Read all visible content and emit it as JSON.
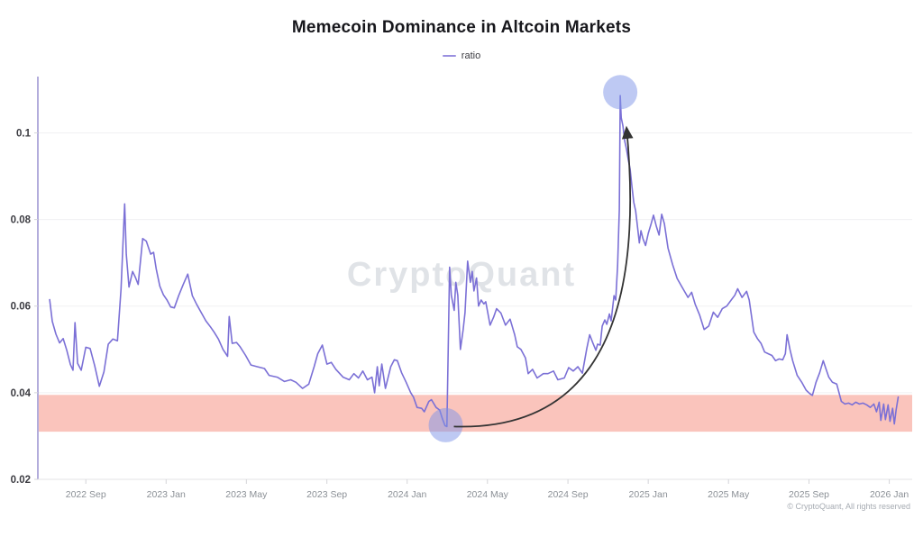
{
  "header": {
    "title": "Memecoin Dominance in Altcoin Markets",
    "legend": [
      {
        "label": "ratio",
        "color": "#9a90e0"
      }
    ],
    "watermark": "CryptoQuant",
    "copyright": "© CryptoQuant, All rights reserved"
  },
  "chart_data": {
    "type": "line",
    "title": "Memecoin Dominance in Altcoin Markets",
    "xlabel": "",
    "ylabel": "ratio",
    "grid": "horizontal",
    "legend_position": "top-center",
    "xlim": [
      2022.468,
      2026.095
    ],
    "ylim": [
      0.02,
      0.113
    ],
    "y_ticks": [
      {
        "v": 0.02,
        "label": "0.02"
      },
      {
        "v": 0.04,
        "label": "0.04"
      },
      {
        "v": 0.06,
        "label": "0.06"
      },
      {
        "v": 0.08,
        "label": "0.08"
      },
      {
        "v": 0.1,
        "label": "0.1"
      }
    ],
    "x_ticks": [
      {
        "t": 2022.667,
        "label": "2022 Sep"
      },
      {
        "t": 2023.0,
        "label": "2023 Jan"
      },
      {
        "t": 2023.333,
        "label": "2023 May"
      },
      {
        "t": 2023.667,
        "label": "2023 Sep"
      },
      {
        "t": 2024.0,
        "label": "2024 Jan"
      },
      {
        "t": 2024.333,
        "label": "2024 May"
      },
      {
        "t": 2024.667,
        "label": "2024 Sep"
      },
      {
        "t": 2025.0,
        "label": "2025 Jan"
      },
      {
        "t": 2025.333,
        "label": "2025 May"
      },
      {
        "t": 2025.667,
        "label": "2025 Sep"
      },
      {
        "t": 2026.0,
        "label": "2026 Jan"
      }
    ],
    "highlight_band": {
      "from": 0.031,
      "to": 0.0395,
      "color": "#f8b0a6",
      "opacity": 0.75
    },
    "annotations": {
      "circles": [
        {
          "name": "trough-marker",
          "t": 2024.16,
          "v": 0.0325,
          "color": "#7d93e8",
          "opacity": 0.5
        },
        {
          "name": "peak-marker",
          "t": 2024.884,
          "v": 0.1094,
          "color": "#7d93e8",
          "opacity": 0.5
        }
      ],
      "arrow": {
        "from_t": 2024.175,
        "from_v": 0.0322,
        "to_t": 2024.884,
        "to_v": 0.104,
        "color": "#333333"
      }
    },
    "series": [
      {
        "name": "ratio",
        "color": "#7b70d6",
        "points": [
          [
            2022.517,
            0.0615
          ],
          [
            2022.528,
            0.0565
          ],
          [
            2022.543,
            0.0535
          ],
          [
            2022.558,
            0.0515
          ],
          [
            2022.573,
            0.0525
          ],
          [
            2022.588,
            0.0498
          ],
          [
            2022.603,
            0.0465
          ],
          [
            2022.614,
            0.0452
          ],
          [
            2022.622,
            0.0562
          ],
          [
            2022.633,
            0.0468
          ],
          [
            2022.648,
            0.0452
          ],
          [
            2022.667,
            0.0505
          ],
          [
            2022.685,
            0.0502
          ],
          [
            2022.704,
            0.0462
          ],
          [
            2022.723,
            0.0415
          ],
          [
            2022.742,
            0.0448
          ],
          [
            2022.76,
            0.0512
          ],
          [
            2022.779,
            0.0524
          ],
          [
            2022.798,
            0.052
          ],
          [
            2022.813,
            0.064
          ],
          [
            2022.828,
            0.0836
          ],
          [
            2022.835,
            0.072
          ],
          [
            2022.846,
            0.0644
          ],
          [
            2022.861,
            0.068
          ],
          [
            2022.873,
            0.0666
          ],
          [
            2022.884,
            0.065
          ],
          [
            2022.903,
            0.0756
          ],
          [
            2022.918,
            0.075
          ],
          [
            2022.936,
            0.072
          ],
          [
            2022.948,
            0.0724
          ],
          [
            2022.959,
            0.0686
          ],
          [
            2022.974,
            0.0646
          ],
          [
            2022.989,
            0.0626
          ],
          [
            2023.004,
            0.0614
          ],
          [
            2023.019,
            0.0598
          ],
          [
            2023.034,
            0.0596
          ],
          [
            2023.052,
            0.0624
          ],
          [
            2023.071,
            0.065
          ],
          [
            2023.09,
            0.0674
          ],
          [
            2023.109,
            0.0624
          ],
          [
            2023.127,
            0.0604
          ],
          [
            2023.146,
            0.0585
          ],
          [
            2023.165,
            0.0566
          ],
          [
            2023.184,
            0.0552
          ],
          [
            2023.199,
            0.054
          ],
          [
            2023.217,
            0.0524
          ],
          [
            2023.236,
            0.05
          ],
          [
            2023.255,
            0.0484
          ],
          [
            2023.262,
            0.0576
          ],
          [
            2023.274,
            0.0514
          ],
          [
            2023.292,
            0.0516
          ],
          [
            2023.307,
            0.0506
          ],
          [
            2023.33,
            0.0486
          ],
          [
            2023.352,
            0.0464
          ],
          [
            2023.378,
            0.046
          ],
          [
            2023.408,
            0.0456
          ],
          [
            2023.427,
            0.044
          ],
          [
            2023.461,
            0.0436
          ],
          [
            2023.491,
            0.0426
          ],
          [
            2023.517,
            0.043
          ],
          [
            2023.539,
            0.0424
          ],
          [
            2023.566,
            0.041
          ],
          [
            2023.592,
            0.042
          ],
          [
            2023.614,
            0.046
          ],
          [
            2023.629,
            0.049
          ],
          [
            2023.648,
            0.051
          ],
          [
            2023.667,
            0.0466
          ],
          [
            2023.685,
            0.047
          ],
          [
            2023.704,
            0.0454
          ],
          [
            2023.734,
            0.0436
          ],
          [
            2023.76,
            0.043
          ],
          [
            2023.779,
            0.0444
          ],
          [
            2023.798,
            0.0434
          ],
          [
            2023.816,
            0.045
          ],
          [
            2023.835,
            0.043
          ],
          [
            2023.854,
            0.0436
          ],
          [
            2023.865,
            0.04
          ],
          [
            2023.876,
            0.046
          ],
          [
            2023.884,
            0.0416
          ],
          [
            2023.895,
            0.0466
          ],
          [
            2023.91,
            0.041
          ],
          [
            2023.932,
            0.046
          ],
          [
            2023.947,
            0.0476
          ],
          [
            2023.959,
            0.0474
          ],
          [
            2023.977,
            0.0446
          ],
          [
            2023.996,
            0.0424
          ],
          [
            2024.015,
            0.04
          ],
          [
            2024.026,
            0.039
          ],
          [
            2024.041,
            0.0366
          ],
          [
            2024.06,
            0.0364
          ],
          [
            2024.071,
            0.0356
          ],
          [
            2024.09,
            0.038
          ],
          [
            2024.101,
            0.0384
          ],
          [
            2024.12,
            0.0366
          ],
          [
            2024.135,
            0.036
          ],
          [
            2024.146,
            0.034
          ],
          [
            2024.157,
            0.0324
          ],
          [
            2024.165,
            0.0322
          ],
          [
            2024.176,
            0.069
          ],
          [
            2024.183,
            0.0625
          ],
          [
            2024.195,
            0.059
          ],
          [
            2024.202,
            0.0655
          ],
          [
            2024.21,
            0.0625
          ],
          [
            2024.221,
            0.05
          ],
          [
            2024.232,
            0.0545
          ],
          [
            2024.24,
            0.0585
          ],
          [
            2024.251,
            0.0704
          ],
          [
            2024.262,
            0.0655
          ],
          [
            2024.27,
            0.068
          ],
          [
            2024.277,
            0.0635
          ],
          [
            2024.288,
            0.0665
          ],
          [
            2024.296,
            0.06
          ],
          [
            2024.307,
            0.0614
          ],
          [
            2024.318,
            0.0605
          ],
          [
            2024.326,
            0.061
          ],
          [
            2024.344,
            0.0556
          ],
          [
            2024.359,
            0.0575
          ],
          [
            2024.371,
            0.0594
          ],
          [
            2024.389,
            0.0584
          ],
          [
            2024.408,
            0.0556
          ],
          [
            2024.427,
            0.057
          ],
          [
            2024.446,
            0.0534
          ],
          [
            2024.457,
            0.0506
          ],
          [
            2024.472,
            0.05
          ],
          [
            2024.491,
            0.048
          ],
          [
            2024.502,
            0.0444
          ],
          [
            2024.52,
            0.0454
          ],
          [
            2024.539,
            0.0434
          ],
          [
            2024.565,
            0.0444
          ],
          [
            2024.584,
            0.0444
          ],
          [
            2024.607,
            0.045
          ],
          [
            2024.625,
            0.043
          ],
          [
            2024.652,
            0.0434
          ],
          [
            2024.67,
            0.0458
          ],
          [
            2024.689,
            0.045
          ],
          [
            2024.708,
            0.046
          ],
          [
            2024.727,
            0.0445
          ],
          [
            2024.745,
            0.0502
          ],
          [
            2024.757,
            0.0534
          ],
          [
            2024.771,
            0.0514
          ],
          [
            2024.783,
            0.0498
          ],
          [
            2024.79,
            0.0512
          ],
          [
            2024.801,
            0.051
          ],
          [
            2024.809,
            0.0554
          ],
          [
            2024.82,
            0.0568
          ],
          [
            2024.828,
            0.0558
          ],
          [
            2024.839,
            0.0582
          ],
          [
            2024.846,
            0.0566
          ],
          [
            2024.858,
            0.0624
          ],
          [
            2024.865,
            0.0614
          ],
          [
            2024.873,
            0.0694
          ],
          [
            2024.88,
            0.0824
          ],
          [
            2024.884,
            0.1086
          ],
          [
            2024.888,
            0.1035
          ],
          [
            2024.895,
            0.1016
          ],
          [
            2024.903,
            0.098
          ],
          [
            2024.91,
            0.0962
          ],
          [
            2024.918,
            0.0936
          ],
          [
            2024.925,
            0.0916
          ],
          [
            2024.933,
            0.0874
          ],
          [
            2024.94,
            0.084
          ],
          [
            2024.948,
            0.082
          ],
          [
            2024.955,
            0.0786
          ],
          [
            2024.963,
            0.0746
          ],
          [
            2024.97,
            0.0774
          ],
          [
            2024.978,
            0.0756
          ],
          [
            2024.989,
            0.074
          ],
          [
            2025.0,
            0.0768
          ],
          [
            2025.011,
            0.0788
          ],
          [
            2025.022,
            0.081
          ],
          [
            2025.034,
            0.0784
          ],
          [
            2025.045,
            0.0764
          ],
          [
            2025.056,
            0.0812
          ],
          [
            2025.067,
            0.079
          ],
          [
            2025.082,
            0.0734
          ],
          [
            2025.101,
            0.0696
          ],
          [
            2025.12,
            0.0664
          ],
          [
            2025.138,
            0.0646
          ],
          [
            2025.165,
            0.062
          ],
          [
            2025.18,
            0.0632
          ],
          [
            2025.195,
            0.0604
          ],
          [
            2025.213,
            0.058
          ],
          [
            2025.232,
            0.0546
          ],
          [
            2025.251,
            0.0554
          ],
          [
            2025.27,
            0.0586
          ],
          [
            2025.288,
            0.0574
          ],
          [
            2025.307,
            0.0594
          ],
          [
            2025.326,
            0.06
          ],
          [
            2025.344,
            0.0614
          ],
          [
            2025.359,
            0.0625
          ],
          [
            2025.371,
            0.064
          ],
          [
            2025.389,
            0.062
          ],
          [
            2025.408,
            0.0634
          ],
          [
            2025.419,
            0.0614
          ],
          [
            2025.438,
            0.054
          ],
          [
            2025.453,
            0.0525
          ],
          [
            2025.468,
            0.0514
          ],
          [
            2025.483,
            0.0494
          ],
          [
            2025.498,
            0.049
          ],
          [
            2025.513,
            0.0486
          ],
          [
            2025.528,
            0.0474
          ],
          [
            2025.543,
            0.0478
          ],
          [
            2025.558,
            0.0476
          ],
          [
            2025.569,
            0.049
          ],
          [
            2025.576,
            0.0534
          ],
          [
            2025.588,
            0.05
          ],
          [
            2025.599,
            0.0474
          ],
          [
            2025.618,
            0.044
          ],
          [
            2025.637,
            0.0424
          ],
          [
            2025.655,
            0.0406
          ],
          [
            2025.67,
            0.0398
          ],
          [
            2025.681,
            0.0394
          ],
          [
            2025.696,
            0.0424
          ],
          [
            2025.711,
            0.0446
          ],
          [
            2025.726,
            0.0474
          ],
          [
            2025.738,
            0.0454
          ],
          [
            2025.749,
            0.0436
          ],
          [
            2025.764,
            0.0424
          ],
          [
            2025.782,
            0.042
          ],
          [
            2025.801,
            0.038
          ],
          [
            2025.816,
            0.0374
          ],
          [
            2025.831,
            0.0376
          ],
          [
            2025.846,
            0.0372
          ],
          [
            2025.861,
            0.0378
          ],
          [
            2025.876,
            0.0374
          ],
          [
            2025.891,
            0.0376
          ],
          [
            2025.906,
            0.0372
          ],
          [
            2025.921,
            0.0366
          ],
          [
            2025.936,
            0.0374
          ],
          [
            2025.947,
            0.0356
          ],
          [
            2025.958,
            0.0378
          ],
          [
            2025.965,
            0.0336
          ],
          [
            2025.977,
            0.0374
          ],
          [
            2025.984,
            0.0338
          ],
          [
            2025.995,
            0.0372
          ],
          [
            2026.003,
            0.0334
          ],
          [
            2026.014,
            0.0364
          ],
          [
            2026.021,
            0.0328
          ],
          [
            2026.029,
            0.0362
          ],
          [
            2026.037,
            0.039
          ]
        ]
      }
    ]
  }
}
